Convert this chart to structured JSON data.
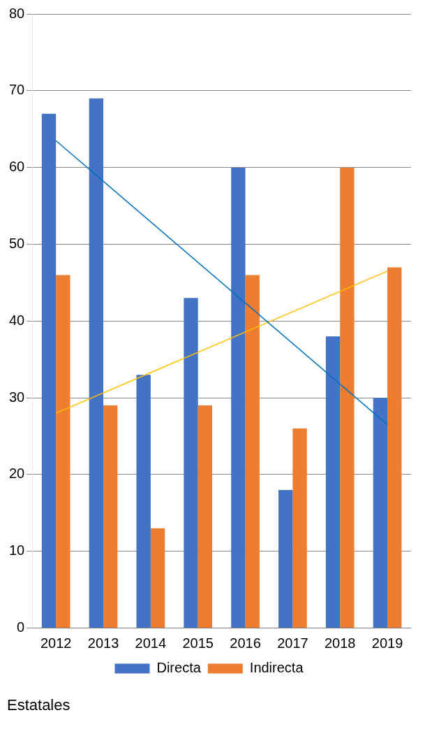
{
  "chart_data": {
    "type": "bar",
    "title": "Estatales",
    "categories": [
      "2012",
      "2013",
      "2014",
      "2015",
      "2016",
      "2017",
      "2018",
      "2019"
    ],
    "series": [
      {
        "name": "Directa",
        "color": "#4472c4",
        "values": [
          67,
          69,
          33,
          43,
          60,
          18,
          38,
          30
        ]
      },
      {
        "name": "Indirecta",
        "color": "#ed7d31",
        "values": [
          46,
          29,
          13,
          29,
          46,
          26,
          60,
          47
        ]
      },
      {
        "type": "line",
        "color": "#0070c0",
        "values": [
          63.5,
          null,
          null,
          null,
          null,
          null,
          null,
          26.5
        ]
      },
      {
        "type": "line",
        "color": "#ffc000",
        "values": [
          28,
          null,
          null,
          null,
          null,
          null,
          null,
          46.5
        ]
      }
    ],
    "ylim": [
      0,
      80
    ],
    "yticks": [
      0,
      10,
      20,
      30,
      40,
      50,
      60,
      70,
      80
    ],
    "grid": "y",
    "legend": "bottom",
    "marker": "none"
  }
}
